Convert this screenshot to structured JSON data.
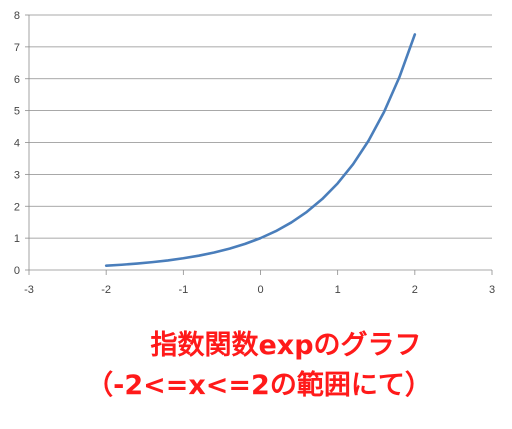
{
  "chart_data": {
    "type": "line",
    "title": "",
    "xlabel": "",
    "ylabel": "",
    "xlim": [
      -3,
      3
    ],
    "ylim": [
      0,
      8
    ],
    "x_ticks": [
      "-3",
      "-2",
      "-1",
      "0",
      "1",
      "2",
      "3"
    ],
    "y_ticks": [
      "0",
      "1",
      "2",
      "3",
      "4",
      "5",
      "6",
      "7",
      "8"
    ],
    "grid": "horizontal",
    "legend": "none",
    "series": [
      {
        "color": "#4a7ebb",
        "x": [
          -2.0,
          -1.8,
          -1.6,
          -1.4,
          -1.2,
          -1.0,
          -0.8,
          -0.6,
          -0.4,
          -0.2,
          0.0,
          0.2,
          0.4,
          0.6,
          0.8,
          1.0,
          1.2,
          1.4,
          1.6,
          1.8,
          2.0
        ],
        "values": [
          0.135,
          0.165,
          0.202,
          0.247,
          0.301,
          0.368,
          0.449,
          0.549,
          0.67,
          0.819,
          1.0,
          1.221,
          1.492,
          1.822,
          2.226,
          2.718,
          3.32,
          4.055,
          4.953,
          6.05,
          7.389
        ]
      }
    ]
  },
  "caption": {
    "line1": "指数関数expのグラフ",
    "line2": "（-2<=x<=2の範囲にて）",
    "color": "#ff1a1a"
  }
}
